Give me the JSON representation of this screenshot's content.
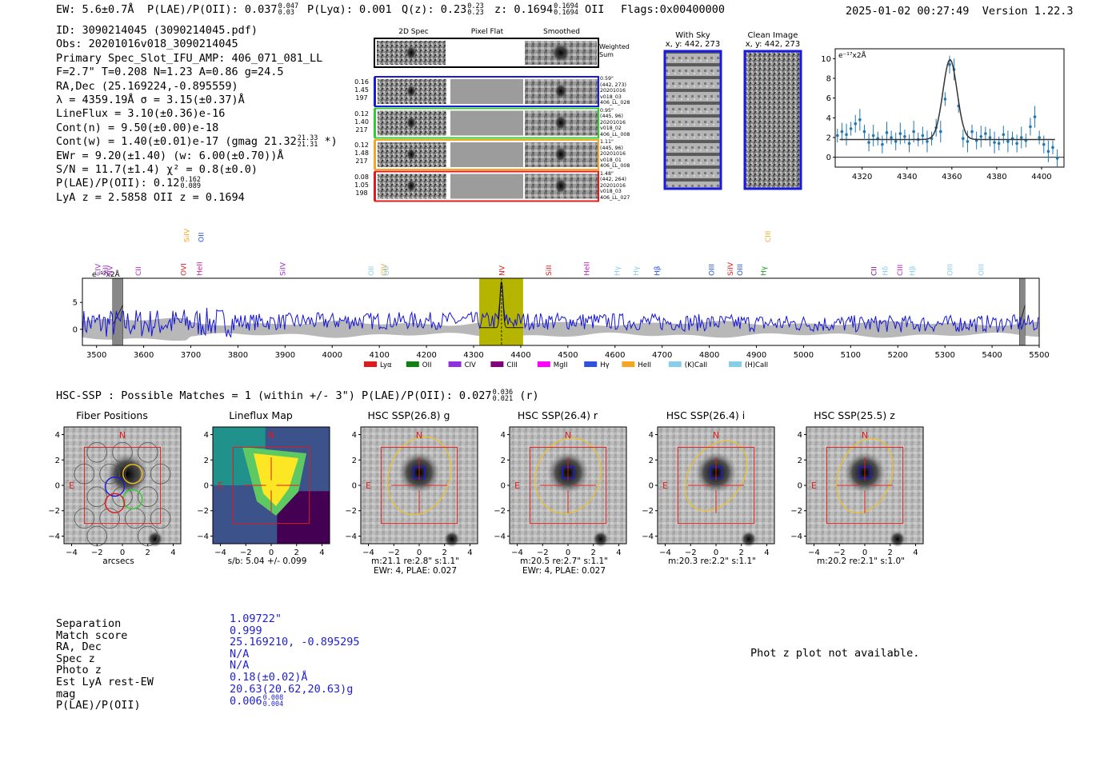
{
  "header": {
    "ew": "EW: 5.6±0.7Å",
    "plae": "P(LAE)/P(OII): 0.037",
    "plae_hi": "0.047",
    "plae_lo": "0.03",
    "plya": "P(Lyα): 0.001",
    "q": "Q(z): 0.23",
    "q_hi": "0.23",
    "q_lo": "0.23",
    "z": "z: 0.1694",
    "z_hi": "0.1694",
    "z_lo": "0.1694",
    "z_line": "OII",
    "flags": "Flags:0x00400000",
    "datetime": "2025-01-02 00:27:49",
    "version": "Version 1.22.3"
  },
  "info": {
    "id": "ID: 3090214045 (3090214045.pdf)",
    "obs": "Obs: 20201016v018_3090214045",
    "spec": "Primary Spec_Slot_IFU_AMP: 406_071_081_LL",
    "params": "F=2.7\"  T=0.208  N=1.23  A=0.86  g=24.5",
    "radec": "RA,Dec (25.169224,-0.895559)",
    "lambda": "λ = 4359.19Å  σ = 3.15(±0.37)Å",
    "lineflux": "LineFlux = 3.10(±0.36)e-16",
    "contn": "Cont(n) = 9.50(±0.00)e-18",
    "contw": "Cont(w) = 1.40(±0.01)e-17 (gmag 21.32",
    "contw_hi": "21.33",
    "contw_lo": "21.31",
    "contw_end": "*)",
    "ewr": "EWr = 9.20(±1.40) (w: 6.00(±0.70))Å",
    "sn": "S/N = 11.7(±1.4)  χ² = 0.8(±0.0)",
    "plae": "P(LAE)/P(OII): 0.12",
    "plae_hi": "0.162",
    "plae_lo": "0.089",
    "lyaz": "LyA z = 2.5858   OII z = 0.1694"
  },
  "cutouts": {
    "col_labels": [
      "2D Spec",
      "Pixel Flat",
      "Smoothed"
    ],
    "weighted_sum": "Weighted Sum",
    "rows": [
      {
        "left": [
          "0.16",
          "1.45",
          "197"
        ],
        "right": [
          "0.59\"",
          "(442, 273)",
          "20201016",
          "v018_03",
          "406_LL_028"
        ],
        "color": "#1a1adc"
      },
      {
        "left": [
          "0.12",
          "1.40",
          "217"
        ],
        "right": [
          "0.95\"",
          "(445, 96)",
          "20201016",
          "v018_02",
          "406_LL_008"
        ],
        "color": "#33cc33"
      },
      {
        "left": [
          "0.12",
          "1.48",
          "217"
        ],
        "right": [
          "1.11\"",
          "(445, 96)",
          "20201016",
          "v018_01",
          "406_LL_008"
        ],
        "color": "#f5a623"
      },
      {
        "left": [
          "0.08",
          "1.05",
          "198"
        ],
        "right": [
          "1.48\"",
          "(442, 264)",
          "20201016",
          "v018_03",
          "406_LL_027"
        ],
        "color": "#e01b1b"
      }
    ],
    "with_sky_title": "With Sky",
    "with_sky_coords": "x, y: 442, 273",
    "clean_title": "Clean Image",
    "clean_coords": "x, y: 442, 273"
  },
  "fit_chart": {
    "type": "scatter",
    "unit_label": "e⁻¹⁷x2Å",
    "xlim": [
      4308,
      4410
    ],
    "ylim": [
      -1,
      11
    ],
    "xticks": [
      "4320",
      "4340",
      "4360",
      "4380",
      "4400"
    ],
    "yticks": [
      "0",
      "2",
      "4",
      "6",
      "8",
      "10"
    ],
    "points": [
      [
        4309,
        2.2
      ],
      [
        4311,
        2.6
      ],
      [
        4313,
        2.3
      ],
      [
        4315,
        2.9
      ],
      [
        4317,
        3.4
      ],
      [
        4319,
        3.8
      ],
      [
        4321,
        2.6
      ],
      [
        4323,
        1.5
      ],
      [
        4325,
        2.2
      ],
      [
        4327,
        1.9
      ],
      [
        4329,
        1.3
      ],
      [
        4331,
        2.5
      ],
      [
        4333,
        2.0
      ],
      [
        4335,
        1.6
      ],
      [
        4337,
        2.4
      ],
      [
        4339,
        2.1
      ],
      [
        4341,
        1.4
      ],
      [
        4343,
        2.6
      ],
      [
        4345,
        1.8
      ],
      [
        4347,
        2.2
      ],
      [
        4349,
        1.6
      ],
      [
        4351,
        1.9
      ],
      [
        4353,
        3.0
      ],
      [
        4355,
        2.6
      ],
      [
        4357,
        5.9
      ],
      [
        4359,
        9.4
      ],
      [
        4361,
        8.9
      ],
      [
        4363,
        5.2
      ],
      [
        4365,
        1.9
      ],
      [
        4367,
        1.6
      ],
      [
        4369,
        2.6
      ],
      [
        4371,
        1.7
      ],
      [
        4373,
        2.1
      ],
      [
        4375,
        2.4
      ],
      [
        4377,
        2.0
      ],
      [
        4379,
        1.5
      ],
      [
        4381,
        1.4
      ],
      [
        4383,
        2.3
      ],
      [
        4385,
        1.6
      ],
      [
        4387,
        1.9
      ],
      [
        4389,
        1.4
      ],
      [
        4391,
        2.0
      ],
      [
        4393,
        1.7
      ],
      [
        4395,
        3.1
      ],
      [
        4397,
        4.1
      ],
      [
        4399,
        2.0
      ],
      [
        4401,
        1.3
      ],
      [
        4403,
        0.6
      ],
      [
        4405,
        1.0
      ],
      [
        4407,
        -0.1
      ]
    ],
    "fit_center": 4359.19,
    "fit_sigma": 3.15,
    "fit_continuum": 1.8,
    "fit_peak": 9.9
  },
  "spectrum": {
    "type": "line",
    "unit_label": "e⁻¹⁷x2Å",
    "xlim": [
      3470,
      5500
    ],
    "ylim": [
      -3,
      9.5
    ],
    "xticks": [
      "3500",
      "3600",
      "3700",
      "3800",
      "3900",
      "4000",
      "4100",
      "4200",
      "4300",
      "4400",
      "4500",
      "4600",
      "4700",
      "4800",
      "4900",
      "5000",
      "5100",
      "5200",
      "5300",
      "5400",
      "5500"
    ],
    "yticks": [
      "0",
      "5"
    ],
    "highlight_range": [
      4312,
      4405
    ],
    "line_center": 4359.19,
    "masked_ranges": [
      [
        3534,
        3556
      ],
      [
        5458,
        5470
      ]
    ],
    "line_labels": [
      {
        "x": 3466,
        "text": "NV",
        "color": "#a030c8",
        "row": 0
      },
      {
        "x": 3508,
        "text": "CIV",
        "color": "#a030c8",
        "row": 0
      },
      {
        "x": 3524,
        "text": "SiII",
        "color": "#a030c8",
        "row": 0
      },
      {
        "x": 3594,
        "text": "CII",
        "color": "#c020c0",
        "row": 0
      },
      {
        "x": 3690,
        "text": "OVI",
        "color": "#e01b1b",
        "row": 0
      },
      {
        "x": 3697,
        "text": "SiIV",
        "color": "#f5a623",
        "row": 1
      },
      {
        "x": 3724,
        "text": "HeII",
        "color": "#d02090",
        "row": 0
      },
      {
        "x": 3727,
        "text": "OII",
        "color": "#2050e0",
        "row": 1
      },
      {
        "x": 3900,
        "text": "SiIV",
        "color": "#a030c8",
        "row": 0
      },
      {
        "x": 4088,
        "text": "OII",
        "color": "#87ceeb",
        "row": 0
      },
      {
        "x": 4115,
        "text": "CIV",
        "color": "#f5a623",
        "row": 0
      },
      {
        "x": 4120,
        "text": "OII",
        "color": "#87ceeb",
        "row": 0
      },
      {
        "x": 4365,
        "text": "NV",
        "color": "#e01b1b",
        "row": 0
      },
      {
        "x": 4465,
        "text": "SiII",
        "color": "#e01b1b",
        "row": 0
      },
      {
        "x": 4545,
        "text": "HeII",
        "color": "#c020c0",
        "row": 0
      },
      {
        "x": 4610,
        "text": "Hγ",
        "color": "#87ceeb",
        "row": 0
      },
      {
        "x": 4650,
        "text": "Hγ",
        "color": "#87ceeb",
        "row": 0
      },
      {
        "x": 4695,
        "text": "Hβ",
        "color": "#2050e0",
        "row": 0
      },
      {
        "x": 4810,
        "text": "OIII",
        "color": "#2050e0",
        "row": 0
      },
      {
        "x": 4850,
        "text": "SiIV",
        "color": "#e01b1b",
        "row": 0
      },
      {
        "x": 4870,
        "text": "OIII",
        "color": "#2050e0",
        "row": 0
      },
      {
        "x": 4920,
        "text": "Hγ",
        "color": "#1a9a1a",
        "row": 0
      },
      {
        "x": 4930,
        "text": "CIII",
        "color": "#f5a623",
        "row": 1
      },
      {
        "x": 5155,
        "text": "CII",
        "color": "#800080",
        "row": 0
      },
      {
        "x": 5178,
        "text": "Hδ",
        "color": "#87ceeb",
        "row": 0
      },
      {
        "x": 5210,
        "text": "CIII",
        "color": "#c020c0",
        "row": 0
      },
      {
        "x": 5236,
        "text": "Hβ",
        "color": "#87ceeb",
        "row": 0
      },
      {
        "x": 5316,
        "text": "OIII",
        "color": "#87ceeb",
        "row": 0
      },
      {
        "x": 5382,
        "text": "OIII",
        "color": "#87ceeb",
        "row": 0
      }
    ],
    "legend": [
      {
        "name": "Lyα",
        "color": "#e01b1b"
      },
      {
        "name": "OII",
        "color": "#108010"
      },
      {
        "name": "CIV",
        "color": "#9030e0"
      },
      {
        "name": "CIII",
        "color": "#800080"
      },
      {
        "name": "MgII",
        "color": "#ff00ff"
      },
      {
        "name": "Hγ",
        "color": "#3050e0"
      },
      {
        "name": "HeII",
        "color": "#f5a623"
      },
      {
        "name": "(K)CaII",
        "color": "#87ceeb"
      },
      {
        "name": "(H)CaII",
        "color": "#87ceeb"
      }
    ]
  },
  "hsc": {
    "title": "HSC-SSP : Possible Matches = 1 (within +/- 3\")  P(LAE)/P(OII): 0.027",
    "plae_hi": "0.036",
    "plae_lo": "0.021",
    "band": "(r)",
    "panels": [
      {
        "title": "Fiber Positions",
        "caption1": "arcsecs",
        "caption2": ""
      },
      {
        "title": "Lineflux Map",
        "caption1": "s/b: 5.04 +/- 0.099",
        "caption2": ""
      },
      {
        "title": "HSC SSP(26.8) g",
        "caption1": "m:21.1  re:2.8\"  s:1.1\"",
        "caption2": "EWr: 4, PLAE: 0.027"
      },
      {
        "title": "HSC SSP(26.4) r",
        "caption1": "m:20.5  re:2.7\"  s:1.1\"",
        "caption2": "EWr: 4, PLAE: 0.027"
      },
      {
        "title": "HSC SSP(26.4) i",
        "caption1": "m:20.3  re:2.2\"  s:1.1\"",
        "caption2": ""
      },
      {
        "title": "HSC SSP(25.5) z",
        "caption1": "m:20.2  re:2.1\"  s:1.0\"",
        "caption2": ""
      }
    ],
    "axis_ticks": [
      "−4",
      "−2",
      "0",
      "2",
      "4"
    ],
    "north": "N",
    "east": "E"
  },
  "summary": {
    "labels": [
      "Separation",
      "Match score",
      "RA, Dec",
      "Spec z",
      "Photo z",
      "Est LyA rest-EW",
      "mag",
      "P(LAE)/P(OII)"
    ],
    "values": [
      "1.09722\"",
      "0.999",
      "25.169210, -0.895295",
      "N/A",
      "N/A",
      "0.18(±0.02)Å",
      "20.63(20.62,20.63)g",
      "0.006"
    ],
    "plae_hi": "0.008",
    "plae_lo": "0.004",
    "photz_note": "Phot z plot not available."
  },
  "colors": {
    "spectrum_line": "#1515d6",
    "highlight": "#b5b500",
    "fit_points": "#1f77b4",
    "panel_red": "#e01b1b",
    "panel_yellow": "#f0c020"
  }
}
